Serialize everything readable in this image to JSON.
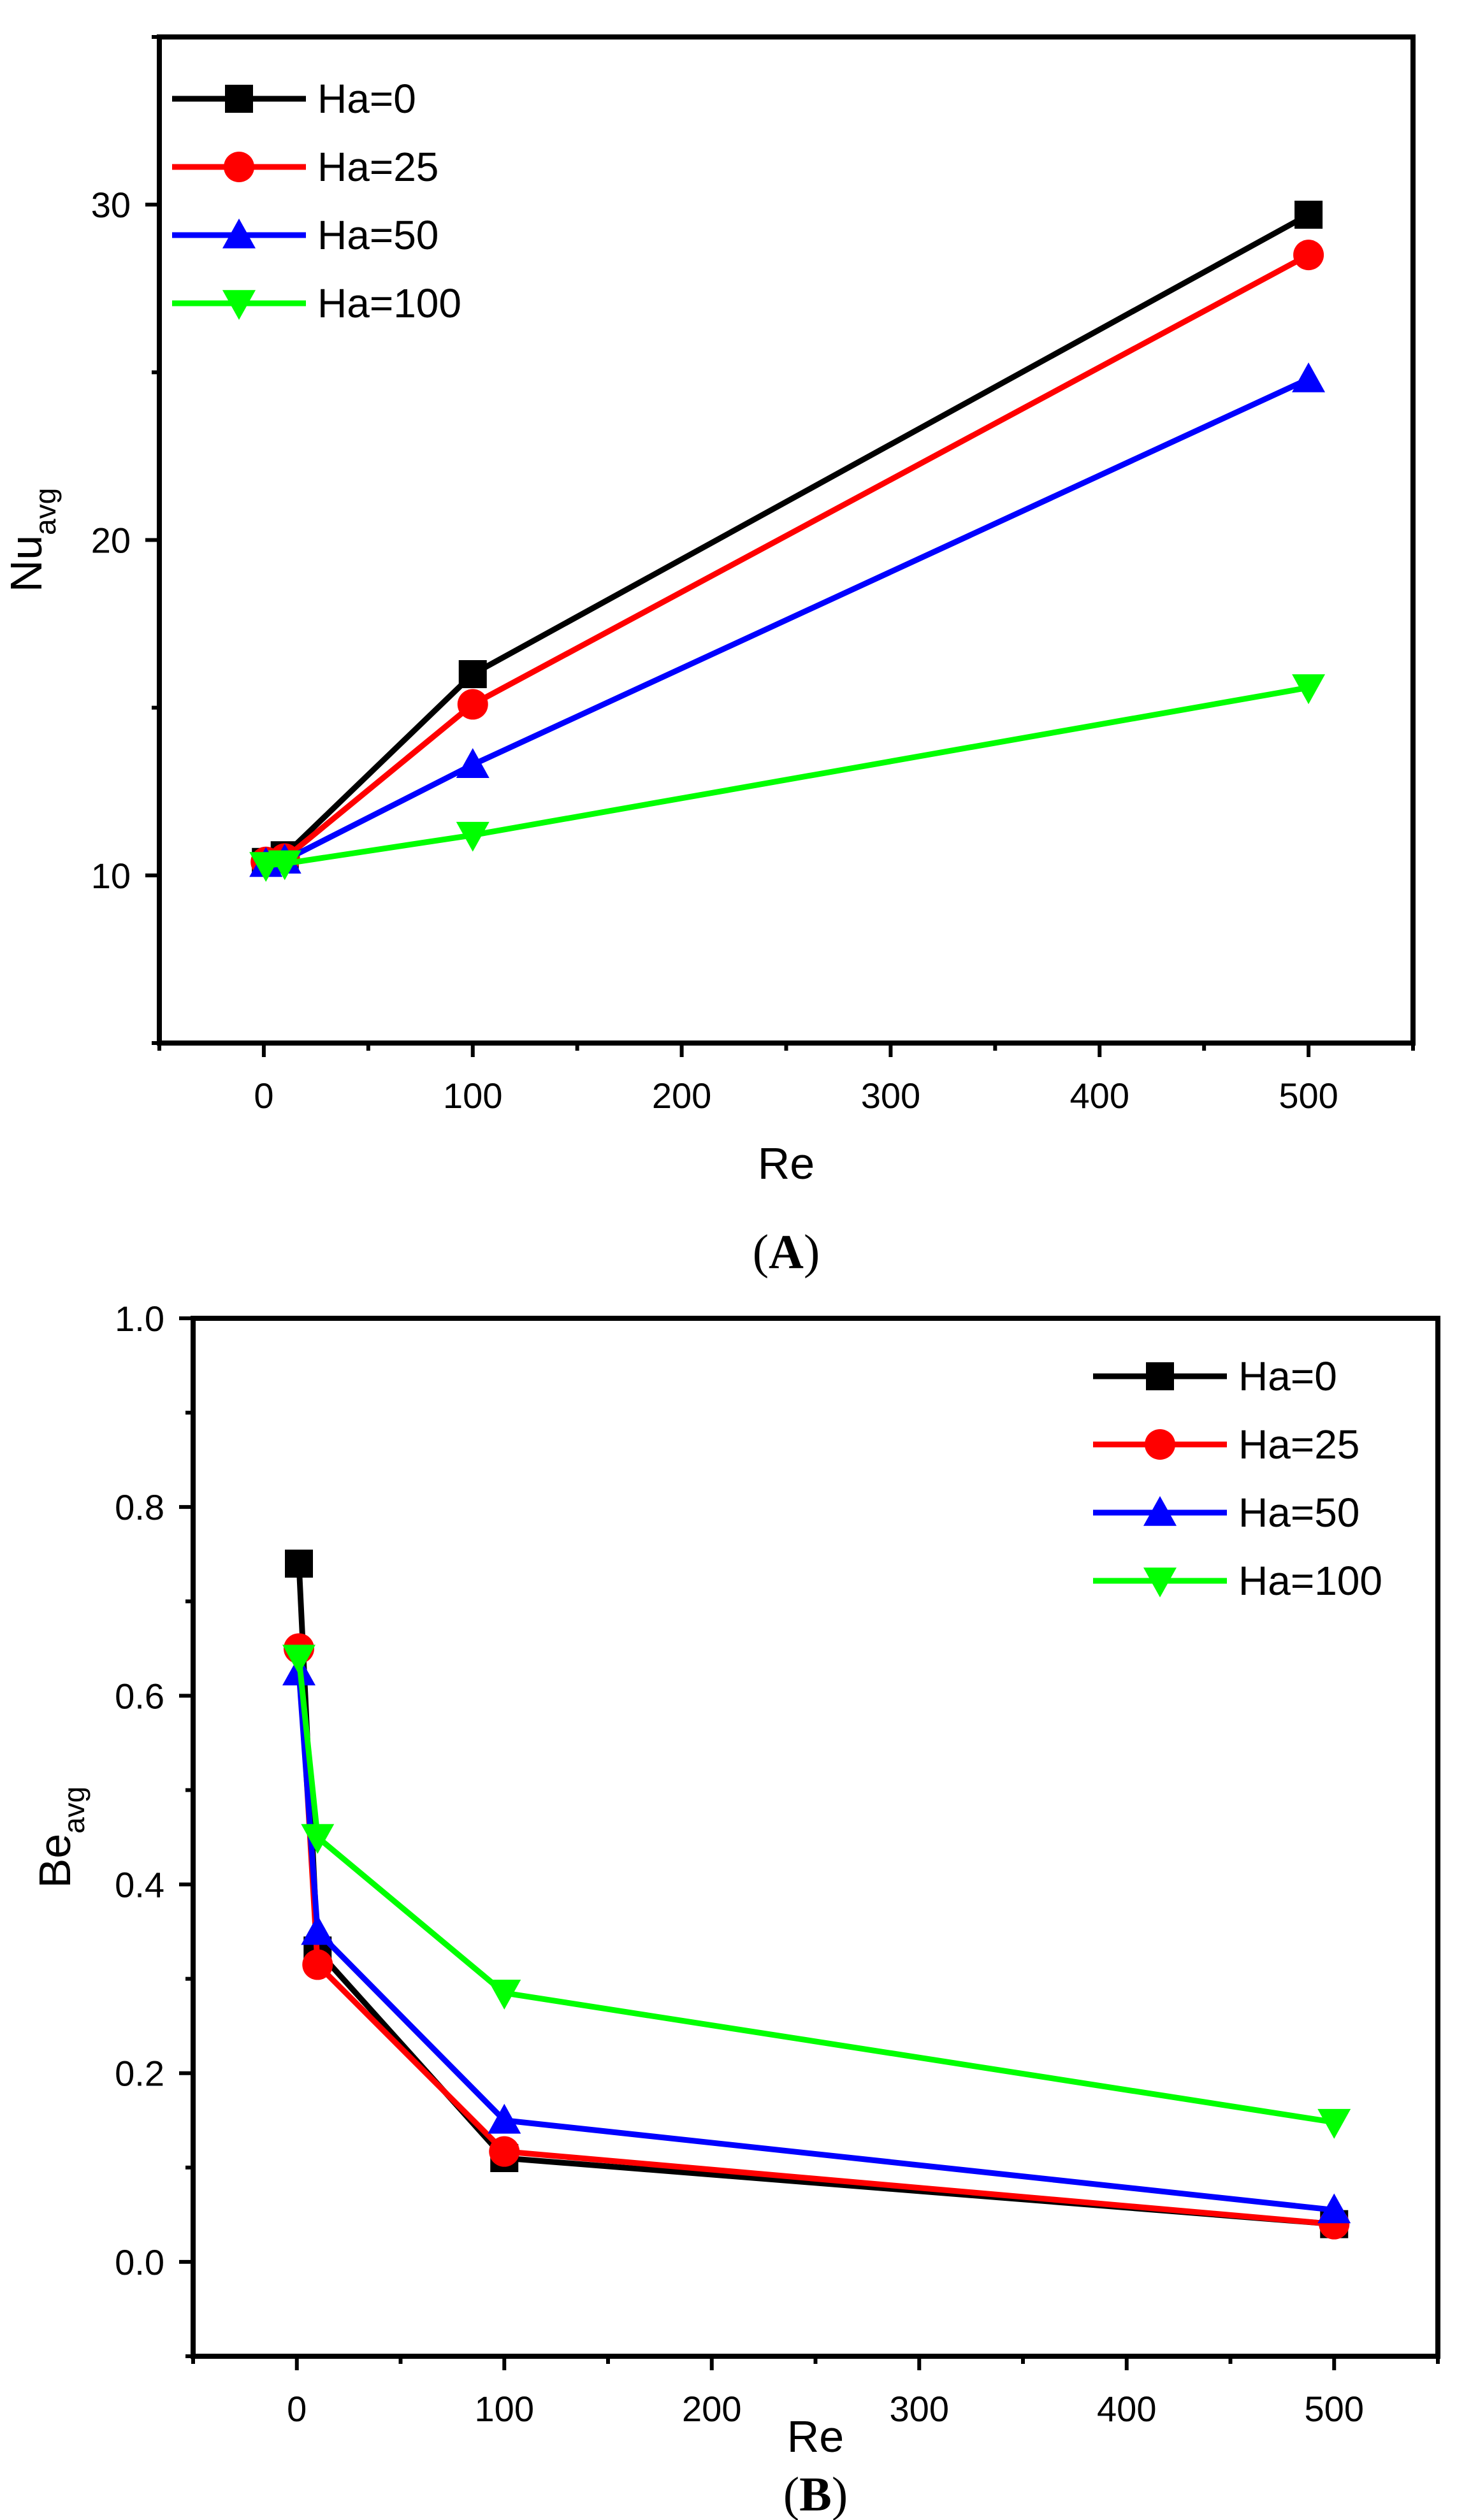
{
  "chart_data": [
    {
      "panel": "(A)",
      "panel_letter": "A",
      "type": "line",
      "title": "",
      "xlabel": "Re",
      "ylabel_main": "Nu",
      "ylabel_sub": "avg",
      "xlim": [
        -50,
        550
      ],
      "ylim": [
        5,
        35
      ],
      "xticks": [
        0,
        100,
        200,
        300,
        400,
        500
      ],
      "yticks": [
        10,
        20,
        30
      ],
      "legend_position": "top-left",
      "grid": false,
      "x": [
        1,
        10,
        100,
        500
      ],
      "series": [
        {
          "name": "Ha=0",
          "color": "#000000",
          "marker": "square",
          "values": [
            10.4,
            10.6,
            16.0,
            29.7
          ]
        },
        {
          "name": "Ha=25",
          "color": "#ff0000",
          "marker": "circle",
          "values": [
            10.4,
            10.5,
            15.1,
            28.5
          ]
        },
        {
          "name": "Ha=50",
          "color": "#0000ff",
          "marker": "triangle-up",
          "values": [
            10.35,
            10.45,
            13.3,
            24.8
          ]
        },
        {
          "name": "Ha=100",
          "color": "#00ff00",
          "marker": "triangle-down",
          "values": [
            10.3,
            10.35,
            11.2,
            15.6
          ]
        }
      ]
    },
    {
      "panel": "(B)",
      "panel_letter": "B",
      "type": "line",
      "title": "",
      "xlabel": "Re",
      "ylabel_main": "Be",
      "ylabel_sub": "avg",
      "xlim": [
        -50,
        550
      ],
      "ylim": [
        -0.1,
        1.0
      ],
      "xticks": [
        0,
        100,
        200,
        300,
        400,
        500
      ],
      "yticks": [
        0.0,
        0.2,
        0.4,
        0.6,
        0.8,
        1.0
      ],
      "ytick_labels": [
        "0.0",
        "0.2",
        "0.4",
        "0.6",
        "0.8",
        "1.0"
      ],
      "legend_position": "top-right",
      "grid": false,
      "x": [
        1,
        10,
        100,
        500
      ],
      "series": [
        {
          "name": "Ha=0",
          "color": "#000000",
          "marker": "square",
          "values": [
            0.74,
            0.33,
            0.11,
            0.04
          ]
        },
        {
          "name": "Ha=25",
          "color": "#ff0000",
          "marker": "circle",
          "values": [
            0.65,
            0.315,
            0.117,
            0.04
          ]
        },
        {
          "name": "Ha=50",
          "color": "#0000ff",
          "marker": "triangle-up",
          "values": [
            0.625,
            0.35,
            0.15,
            0.055
          ]
        },
        {
          "name": "Ha=100",
          "color": "#00ff00",
          "marker": "triangle-down",
          "values": [
            0.64,
            0.45,
            0.285,
            0.148
          ]
        }
      ]
    }
  ]
}
